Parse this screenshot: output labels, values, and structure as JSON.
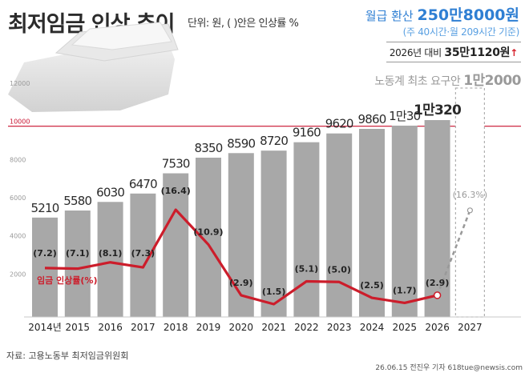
{
  "header": {
    "title": "최저임금 인상 추이",
    "unit": "단위: 원, ( )안은 인상률 %",
    "monthly_prefix": "월급 환산",
    "monthly_amount": "250만8000원",
    "monthly_basis": "(주 40시간·월 209시간 기준)",
    "compare_prefix": "2026년 대비",
    "compare_amount": "35만1120원",
    "compare_arrow": "↑",
    "labor_prefix": "노동계 최초 요구안",
    "labor_amount": "1만2000"
  },
  "footer": {
    "source": "자료: 고용노동부 최저임금위원회",
    "credit": "26.06.15 전진우 기자 618tue@newsis.com"
  },
  "chart_data": {
    "type": "bar",
    "categories": [
      "2014년",
      "2015",
      "2016",
      "2017",
      "2018",
      "2019",
      "2020",
      "2021",
      "2022",
      "2023",
      "2024",
      "2025",
      "2026",
      "2027"
    ],
    "ylim": [
      0,
      12000
    ],
    "yticks": [
      0,
      2000,
      4000,
      6000,
      8000,
      10000,
      12000
    ],
    "ytick_labels": [
      "0",
      "2000",
      "4000",
      "6000",
      "8000",
      "10000",
      "12000"
    ],
    "reference_line": {
      "value": 10000,
      "color": "#c8102e"
    },
    "series": [
      {
        "values": [
          5210,
          5580,
          6030,
          6470,
          7530,
          8350,
          8590,
          8720,
          9160,
          9620,
          9860,
          10030,
          10320,
          12000
        ],
        "labels": [
          "5210",
          "5580",
          "6030",
          "6470",
          "7530",
          "8350",
          "8590",
          "8720",
          "9160",
          "9620",
          "9860",
          "1만30",
          "1만320",
          ""
        ],
        "color": "#a8a8a8"
      },
      {
        "name": "임금 인상률(%)",
        "values": [
          7.2,
          7.1,
          8.1,
          7.3,
          16.4,
          10.9,
          2.9,
          1.5,
          5.1,
          5.0,
          2.5,
          1.7,
          2.9,
          16.3
        ],
        "labels": [
          "(7.2)",
          "(7.1)",
          "(8.1)",
          "(7.3)",
          "(16.4)",
          "(10.9)",
          "(2.9)",
          "(1.5)",
          "(5.1)",
          "(5.0)",
          "(2.5)",
          "(1.7)",
          "(2.9)",
          "(16.3%)"
        ],
        "color": "#cc1d2b",
        "proposal_color": "#999999"
      }
    ],
    "grid": false
  }
}
